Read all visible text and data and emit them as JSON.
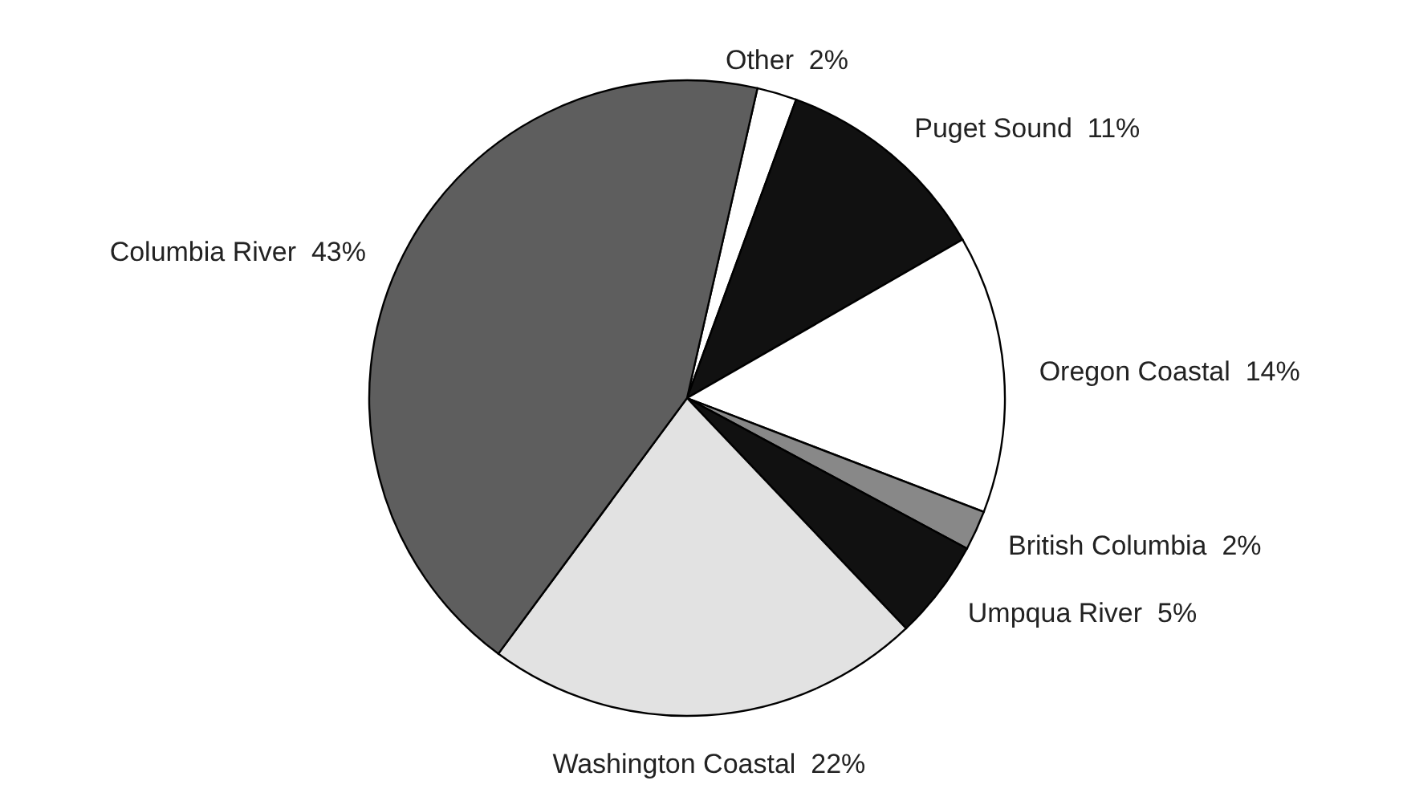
{
  "chart_data": {
    "type": "pie",
    "categories": [
      "Other",
      "Puget Sound",
      "Oregon Coastal",
      "British Columbia",
      "Umpqua River",
      "Washington Coastal",
      "Columbia River"
    ],
    "values": [
      2,
      11,
      14,
      2,
      5,
      22,
      43
    ],
    "value_labels": [
      "2%",
      "11%",
      "14%",
      "2%",
      "5%",
      "22%",
      "43%"
    ],
    "colors": [
      "#ffffff",
      "#111111",
      "#ffffff",
      "#888888",
      "#111111",
      "#e2e2e2",
      "#5e5e5e"
    ]
  }
}
